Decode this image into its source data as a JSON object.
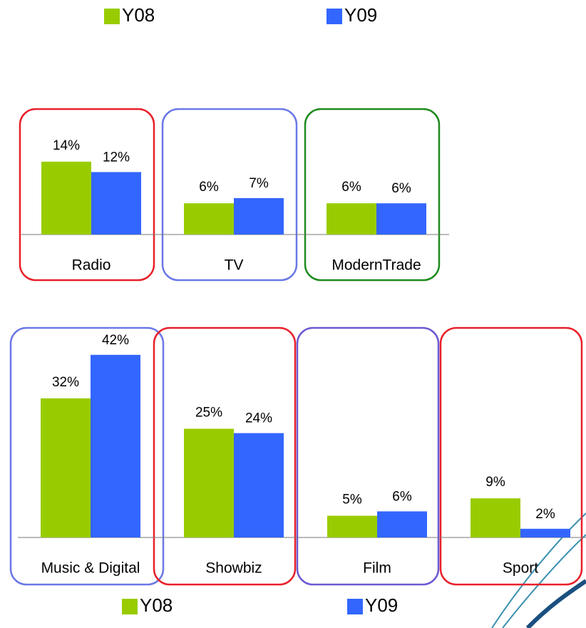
{
  "chart_data": [
    {
      "type": "bar",
      "legend": "top",
      "categories": [
        "Radio",
        "TV",
        "ModernTrade"
      ],
      "category_box_colors": [
        "#e8202a",
        "#6a78e6",
        "#1e8a1e"
      ],
      "series": [
        {
          "name": "Y08",
          "color": "#99cc00",
          "values": [
            14,
            6,
            6
          ],
          "value_labels": [
            "14%",
            "6%",
            "6%"
          ]
        },
        {
          "name": "Y09",
          "color": "#3366ff",
          "values": [
            12,
            7,
            6
          ],
          "value_labels": [
            "12%",
            "7%",
            "6%"
          ]
        }
      ]
    },
    {
      "type": "bar",
      "legend": "bottom",
      "categories": [
        "Music & Digital",
        "Showbiz",
        "Film",
        "Sport"
      ],
      "category_box_colors": [
        "#6a78e6",
        "#e8202a",
        "#6a5ad0",
        "#e8202a"
      ],
      "series": [
        {
          "name": "Y08",
          "color": "#99cc00",
          "values": [
            32,
            25,
            5,
            9
          ],
          "value_labels": [
            "32%",
            "25%",
            "5%",
            "9%"
          ]
        },
        {
          "name": "Y09",
          "color": "#3366ff",
          "values": [
            42,
            24,
            6,
            2
          ],
          "value_labels": [
            "42%",
            "24%",
            "6%",
            "2%"
          ]
        }
      ]
    }
  ]
}
